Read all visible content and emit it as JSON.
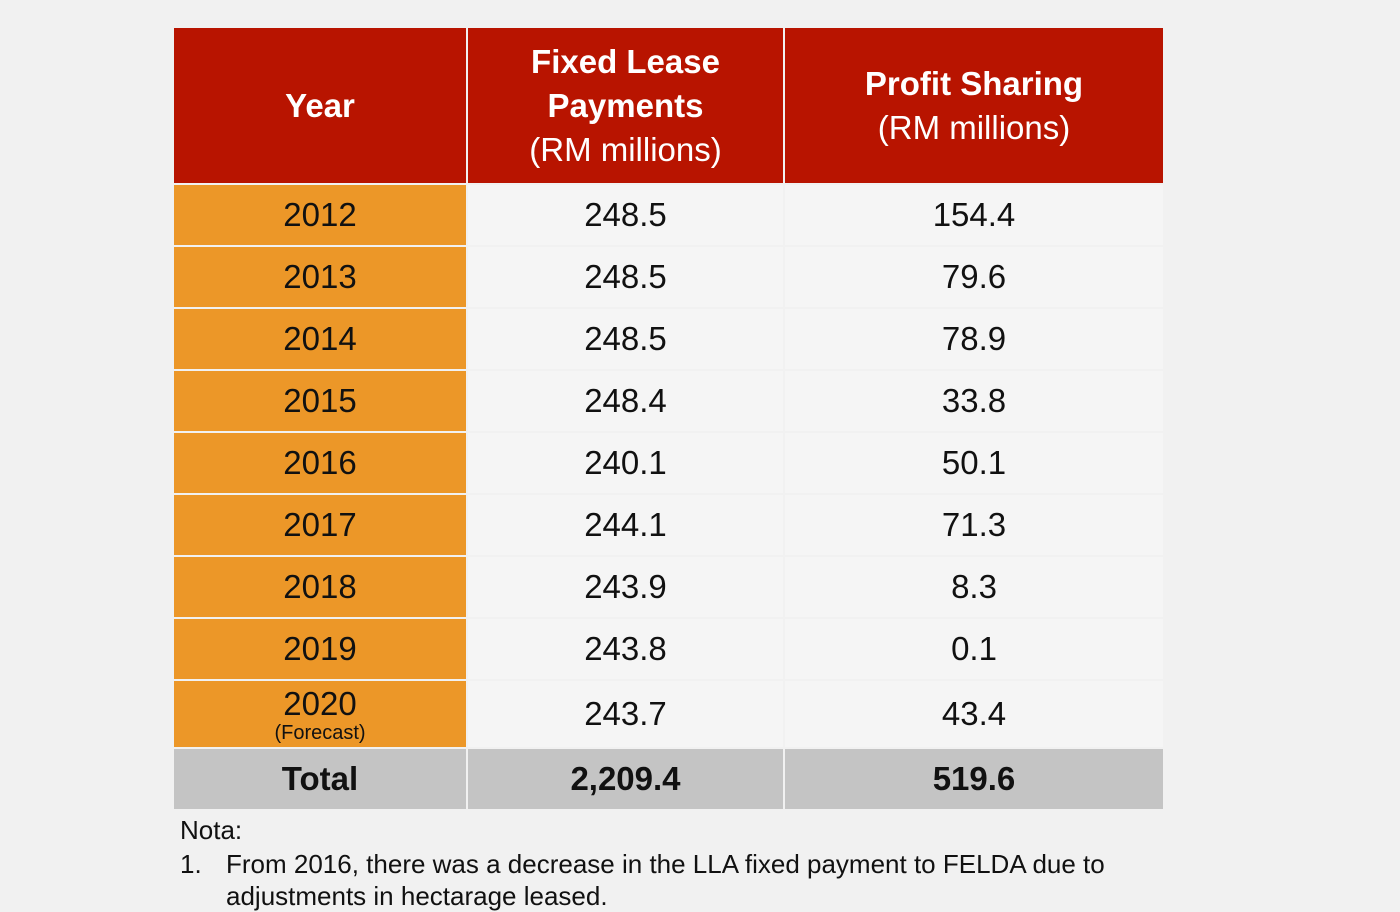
{
  "table": {
    "headers": {
      "year": "Year",
      "fixed_bold_1": "Fixed Lease",
      "fixed_bold_2": "Payments",
      "fixed_unit": "(RM millions)",
      "profit_bold": "Profit Sharing",
      "profit_unit": "(RM millions)"
    },
    "rows": [
      {
        "year": "2012",
        "fixed": "248.5",
        "profit": "154.4"
      },
      {
        "year": "2013",
        "fixed": "248.5",
        "profit": "79.6"
      },
      {
        "year": "2014",
        "fixed": "248.5",
        "profit": "78.9"
      },
      {
        "year": "2015",
        "fixed": "248.4",
        "profit": "33.8"
      },
      {
        "year": "2016",
        "fixed": "240.1",
        "profit": "50.1"
      },
      {
        "year": "2017",
        "fixed": "244.1",
        "profit": "71.3"
      },
      {
        "year": "2018",
        "fixed": "243.9",
        "profit": "8.3"
      },
      {
        "year": "2019",
        "fixed": "243.8",
        "profit": "0.1"
      },
      {
        "year": "2020",
        "note": "(Forecast)",
        "fixed": "243.7",
        "profit": "43.4"
      }
    ],
    "total": {
      "label": "Total",
      "fixed": "2,209.4",
      "profit": "519.6"
    }
  },
  "notes": {
    "title": "Nota:",
    "items": [
      {
        "num": "1.",
        "text": "From 2016, there was a decrease in the LLA fixed payment to FELDA due to adjustments in hectarage leased."
      }
    ]
  },
  "colors": {
    "header_bg": "#b81400",
    "year_bg": "#ec9728",
    "total_bg": "#c4c4c4",
    "cell_bg": "#f5f5f5",
    "page_bg": "#f1f1f1"
  }
}
